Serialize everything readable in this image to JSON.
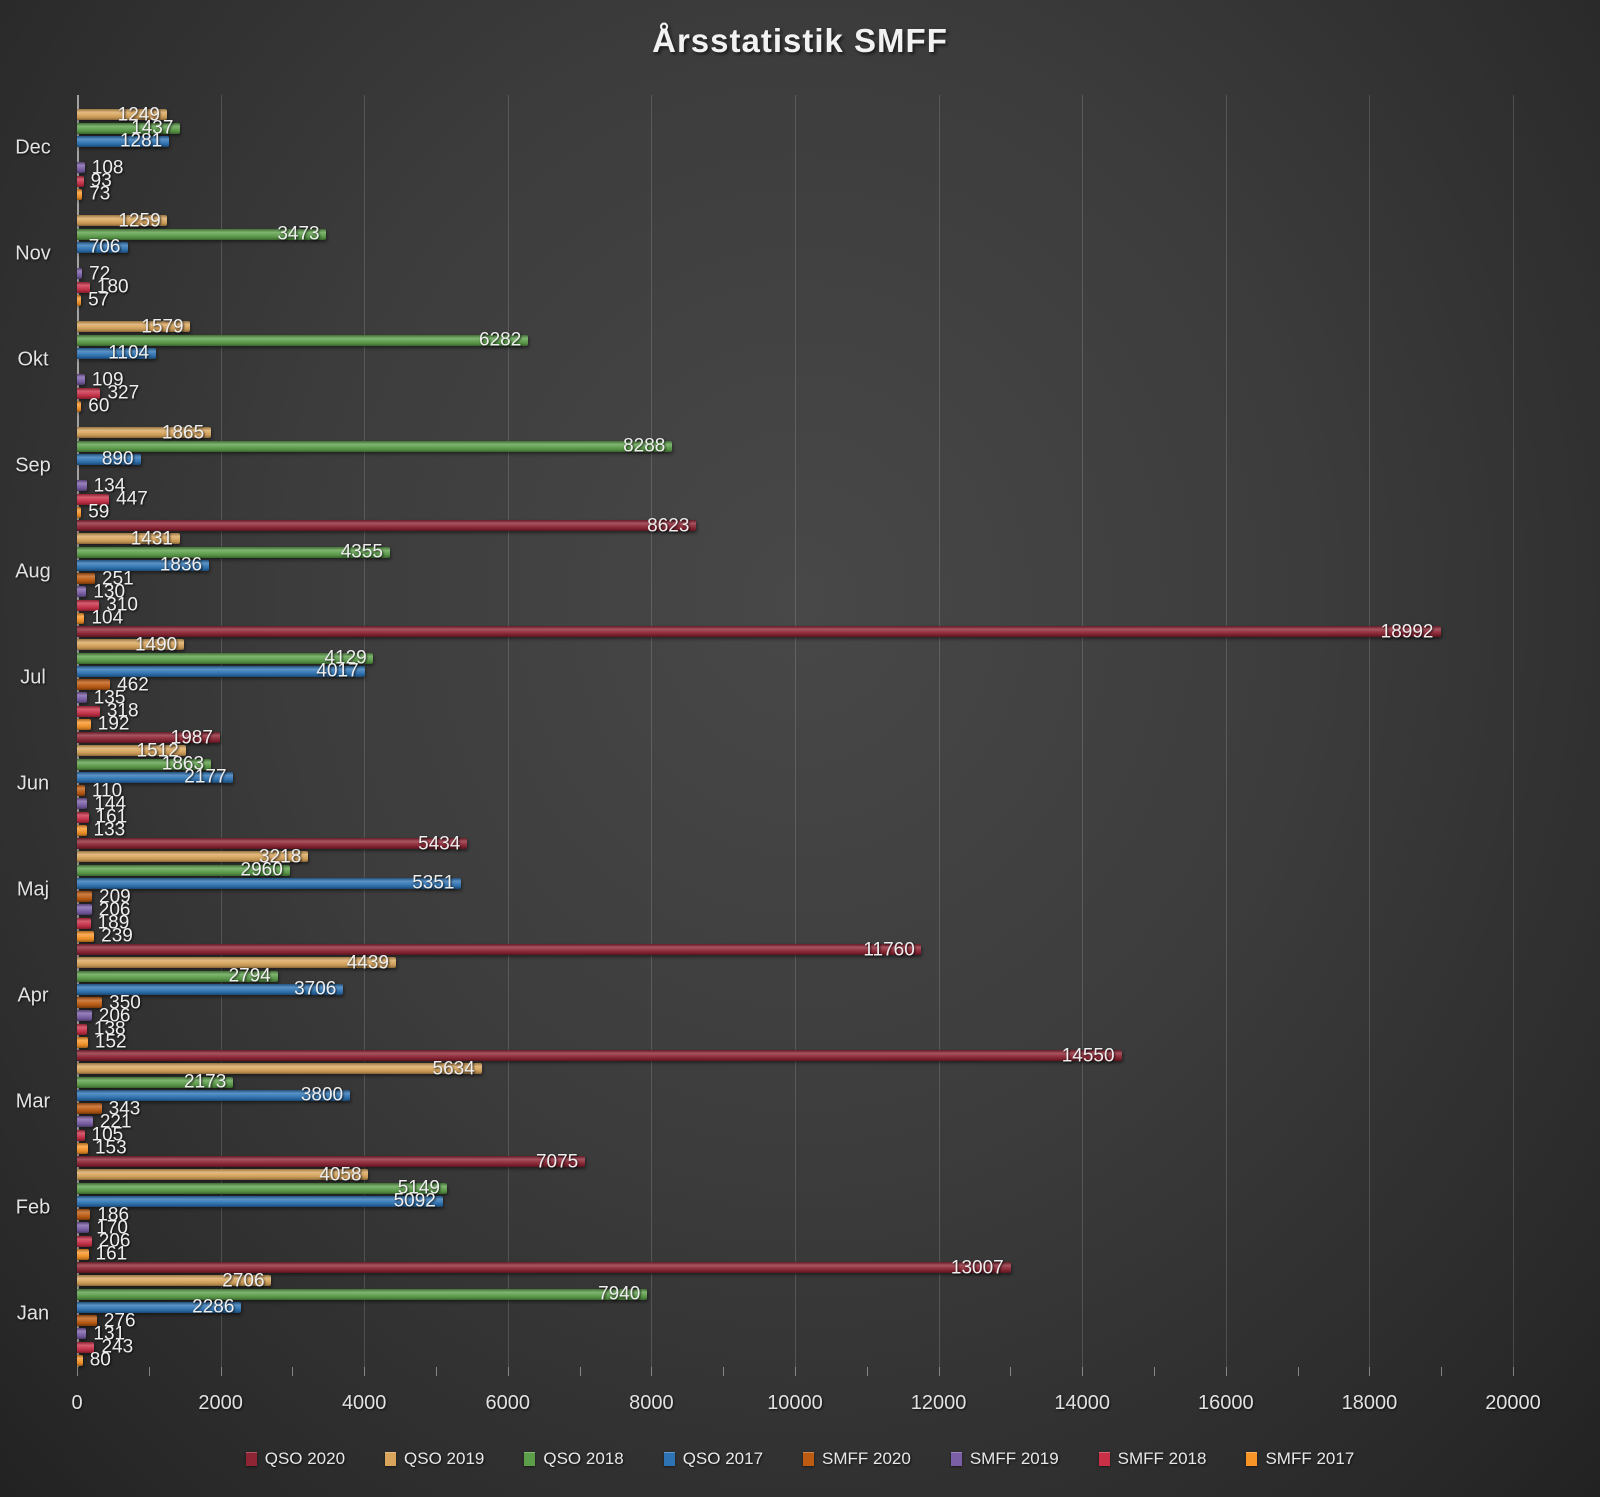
{
  "chart_data": {
    "type": "bar",
    "orientation": "horizontal",
    "title": "Årsstatistik SMFF",
    "categories": [
      "Dec",
      "Nov",
      "Okt",
      "Sep",
      "Aug",
      "Jul",
      "Jun",
      "Maj",
      "Apr",
      "Mar",
      "Feb",
      "Jan"
    ],
    "xlim": [
      0,
      20000
    ],
    "x_major_ticks": [
      0,
      2000,
      4000,
      6000,
      8000,
      10000,
      12000,
      14000,
      16000,
      18000,
      20000
    ],
    "x_minor_tick_step": 1000,
    "grid": true,
    "legend_position": "bottom",
    "series": [
      {
        "name": "QSO 2020",
        "color": "#8e2534",
        "values": [
          null,
          null,
          null,
          null,
          8623,
          18992,
          1987,
          5434,
          11760,
          14550,
          7075,
          13007
        ]
      },
      {
        "name": "QSO 2019",
        "color": "#d9a55c",
        "values": [
          1249,
          1259,
          1579,
          1865,
          1431,
          1490,
          1512,
          3218,
          4439,
          5634,
          4058,
          2706
        ]
      },
      {
        "name": "QSO 2018",
        "color": "#5c9e4a",
        "values": [
          1437,
          3473,
          6282,
          8288,
          4355,
          4129,
          1863,
          2960,
          2794,
          2173,
          5149,
          7940
        ]
      },
      {
        "name": "QSO 2017",
        "color": "#2e74b5",
        "values": [
          1281,
          706,
          1104,
          890,
          1836,
          4017,
          2177,
          5351,
          3706,
          3800,
          5092,
          2286
        ]
      },
      {
        "name": "SMFF 2020",
        "color": "#be5b12",
        "values": [
          null,
          null,
          null,
          null,
          251,
          462,
          110,
          209,
          350,
          343,
          186,
          276
        ]
      },
      {
        "name": "SMFF 2019",
        "color": "#7a5ea6",
        "values": [
          108,
          72,
          109,
          134,
          130,
          135,
          144,
          206,
          206,
          221,
          170,
          131
        ]
      },
      {
        "name": "SMFF 2018",
        "color": "#c92f47",
        "values": [
          93,
          180,
          327,
          447,
          310,
          318,
          161,
          189,
          138,
          105,
          206,
          243
        ]
      },
      {
        "name": "SMFF 2017",
        "color": "#f79428",
        "values": [
          73,
          57,
          60,
          59,
          104,
          192,
          133,
          239,
          152,
          153,
          161,
          80
        ]
      }
    ]
  }
}
